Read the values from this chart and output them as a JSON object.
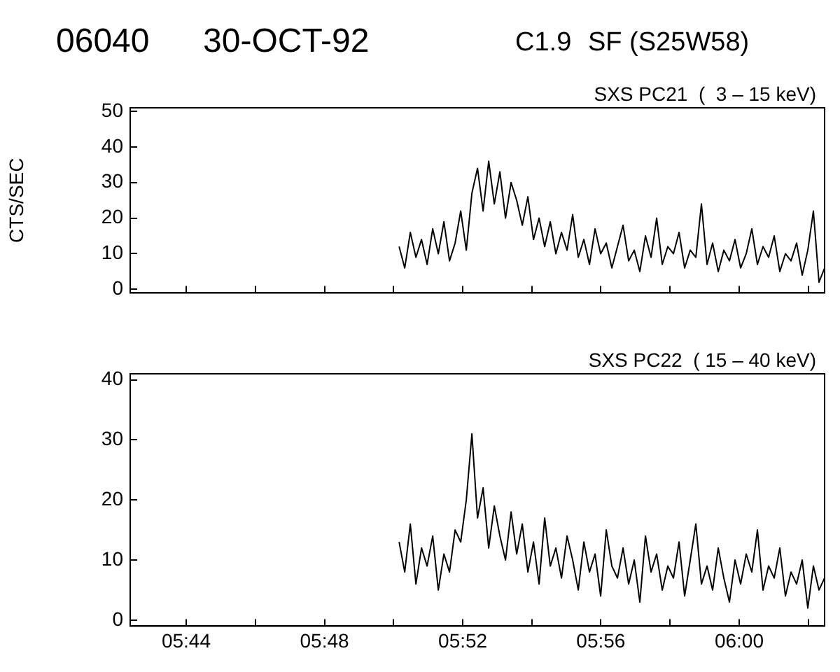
{
  "chart_data": [
    {
      "type": "line",
      "title": "06040",
      "subtitle": "30-OCT-92",
      "annotations": [
        "C1.9",
        "SF (S25W58)",
        "SXS PC21  (  3 – 15 keV)"
      ],
      "ylabel": "CTS/SEC",
      "tick_labels": "y",
      "marker": "none",
      "x": [
        5.836,
        5.8387,
        5.8414,
        5.8441,
        5.8468,
        5.8495,
        5.8522,
        5.8549,
        5.8576,
        5.8603,
        5.863,
        5.8657,
        5.8684,
        5.8711,
        5.8738,
        5.8765,
        5.8792,
        5.8819,
        5.8846,
        5.8873,
        5.89,
        5.8927,
        5.8954,
        5.8981,
        5.9008,
        5.9035,
        5.9062,
        5.9089,
        5.9116,
        5.9143,
        5.917,
        5.9197,
        5.9224,
        5.9251,
        5.9278,
        5.9305,
        5.9332,
        5.9359,
        5.9386,
        5.9413,
        5.944,
        5.9467,
        5.9494,
        5.9521,
        5.9548,
        5.9575,
        5.9602,
        5.9629,
        5.9656,
        5.9683,
        5.971,
        5.9737,
        5.9764,
        5.9791,
        5.9818,
        5.9845,
        5.9872,
        5.9899,
        5.9926,
        5.9953,
        5.998,
        6.0007,
        6.0034,
        6.0061,
        6.0088,
        6.0115,
        6.0142,
        6.0169,
        6.0196,
        6.0223,
        6.025,
        6.0277,
        6.0304,
        6.0331,
        6.0358,
        6.0385,
        6.0412
      ],
      "series": [
        {
          "color": "#000000",
          "values": [
            12,
            6,
            16,
            9,
            14,
            7,
            17,
            10,
            19,
            8,
            13,
            22,
            11,
            27,
            34,
            22,
            36,
            24,
            33,
            20,
            30,
            25,
            18,
            26,
            14,
            20,
            12,
            19,
            10,
            16,
            11,
            21,
            9,
            14,
            7,
            17,
            10,
            13,
            6,
            12,
            18,
            8,
            11,
            5,
            15,
            9,
            20,
            7,
            12,
            10,
            16,
            6,
            11,
            9,
            24,
            7,
            13,
            5,
            11,
            8,
            14,
            6,
            10,
            17,
            7,
            12,
            9,
            15,
            5,
            10,
            8,
            13,
            4,
            11,
            22,
            2,
            6
          ]
        }
      ],
      "xlim": [
        5.7063,
        6.0412
      ],
      "xticks": [
        {
          "value": 5.7333,
          "label": null
        },
        {
          "value": 5.7667,
          "label": null
        },
        {
          "value": 5.8,
          "label": null
        },
        {
          "value": 5.8333,
          "label": null
        },
        {
          "value": 5.8667,
          "label": null
        },
        {
          "value": 5.9,
          "label": null
        },
        {
          "value": 5.9333,
          "label": null
        },
        {
          "value": 5.9667,
          "label": null
        },
        {
          "value": 6.0,
          "label": null
        },
        {
          "value": 6.0333,
          "label": null
        }
      ],
      "ylim": [
        -1,
        51
      ],
      "yticks": [
        0,
        10,
        20,
        30,
        40,
        50
      ]
    },
    {
      "type": "line",
      "annotations": [
        "SXS PC22  ( 15 – 40 keV)"
      ],
      "marker": "none",
      "x": [
        5.836,
        5.8387,
        5.8414,
        5.8441,
        5.8468,
        5.8495,
        5.8522,
        5.8549,
        5.8576,
        5.8603,
        5.863,
        5.8657,
        5.8684,
        5.8711,
        5.8738,
        5.8765,
        5.8792,
        5.8819,
        5.8846,
        5.8873,
        5.89,
        5.8927,
        5.8954,
        5.8981,
        5.9008,
        5.9035,
        5.9062,
        5.9089,
        5.9116,
        5.9143,
        5.917,
        5.9197,
        5.9224,
        5.9251,
        5.9278,
        5.9305,
        5.9332,
        5.9359,
        5.9386,
        5.9413,
        5.944,
        5.9467,
        5.9494,
        5.9521,
        5.9548,
        5.9575,
        5.9602,
        5.9629,
        5.9656,
        5.9683,
        5.971,
        5.9737,
        5.9764,
        5.9791,
        5.9818,
        5.9845,
        5.9872,
        5.9899,
        5.9926,
        5.9953,
        5.998,
        6.0007,
        6.0034,
        6.0061,
        6.0088,
        6.0115,
        6.0142,
        6.0169,
        6.0196,
        6.0223,
        6.025,
        6.0277,
        6.0304,
        6.0331,
        6.0358,
        6.0385,
        6.0412
      ],
      "series": [
        {
          "color": "#000000",
          "values": [
            13,
            8,
            16,
            6,
            12,
            9,
            14,
            5,
            11,
            8,
            15,
            13,
            20,
            31,
            17,
            22,
            12,
            19,
            14,
            10,
            18,
            11,
            16,
            8,
            13,
            6,
            17,
            9,
            12,
            7,
            14,
            10,
            5,
            13,
            8,
            11,
            4,
            15,
            9,
            7,
            12,
            6,
            10,
            3,
            14,
            8,
            11,
            5,
            9,
            7,
            13,
            4,
            10,
            16,
            6,
            9,
            5,
            12,
            7,
            3,
            10,
            6,
            11,
            8,
            15,
            5,
            9,
            7,
            12,
            4,
            8,
            6,
            10,
            2,
            9,
            5,
            7
          ]
        }
      ],
      "xlim": [
        5.7063,
        6.0412
      ],
      "xticks": [
        {
          "value": 5.7333,
          "label": "05:44"
        },
        {
          "value": 5.7667,
          "label": null
        },
        {
          "value": 5.8,
          "label": "05:48"
        },
        {
          "value": 5.8333,
          "label": null
        },
        {
          "value": 5.8667,
          "label": "05:52"
        },
        {
          "value": 5.9,
          "label": null
        },
        {
          "value": 5.9333,
          "label": "05:56"
        },
        {
          "value": 5.9667,
          "label": null
        },
        {
          "value": 6.0,
          "label": "06:00"
        },
        {
          "value": 6.0333,
          "label": null
        }
      ],
      "ylim": [
        -1,
        41
      ],
      "yticks": [
        0,
        10,
        20,
        30,
        40
      ]
    }
  ]
}
